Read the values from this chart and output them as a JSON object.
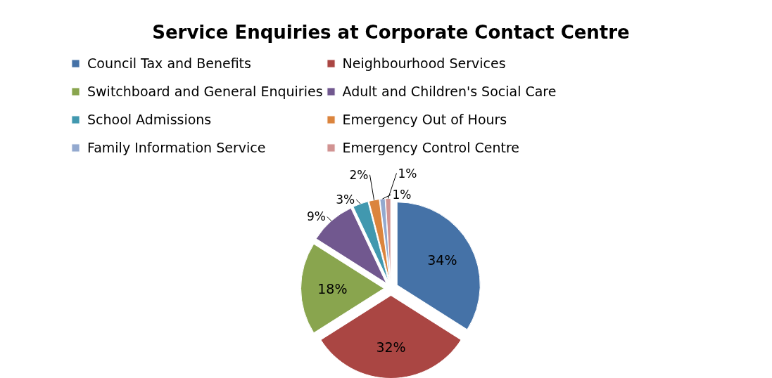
{
  "chart_data": {
    "type": "pie",
    "title": "Service Enquiries at Corporate Contact Centre",
    "categories": [
      "Council Tax and Benefits",
      "Neighbourhood Services",
      "Switchboard and General Enquiries",
      "Adult and Children's Social Care",
      "School Admissions",
      "Emergency Out of Hours",
      "Family Information Service",
      "Emergency Control Centre"
    ],
    "values": [
      34,
      32,
      18,
      9,
      3,
      2,
      1,
      1
    ],
    "value_labels": [
      "34%",
      "32%",
      "18%",
      "9%",
      "3%",
      "2%",
      "1%",
      "1%"
    ],
    "colors": [
      "#4572a7",
      "#aa4643",
      "#89a54e",
      "#71588f",
      "#4198af",
      "#db843d",
      "#93a9cf",
      "#d19392"
    ],
    "legend": "top"
  }
}
